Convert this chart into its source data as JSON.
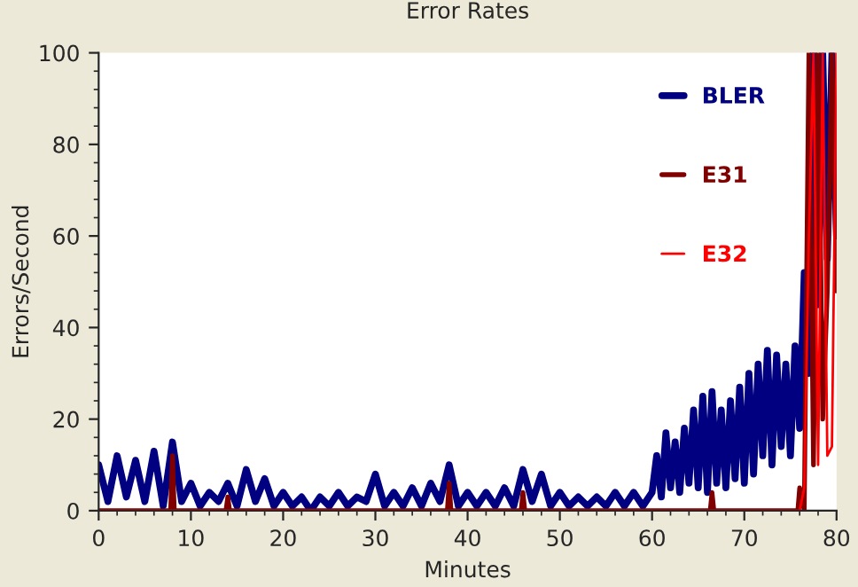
{
  "chart_data": {
    "type": "line",
    "title": "Error Rates",
    "xlabel": "Minutes",
    "ylabel": "Errors/Second",
    "xlim": [
      0,
      80
    ],
    "xticks": [
      0,
      10,
      20,
      30,
      40,
      50,
      60,
      70,
      80
    ],
    "ylim": [
      0,
      100
    ],
    "yticks": [
      0,
      20,
      40,
      60,
      80,
      100
    ],
    "grid": false,
    "legend": "top right",
    "series": [
      {
        "name": "BLER",
        "color": "#000080",
        "x": [
          0,
          1,
          2,
          3,
          4,
          5,
          6,
          7,
          8,
          9,
          10,
          11,
          12,
          13,
          14,
          15,
          16,
          17,
          18,
          19,
          20,
          21,
          22,
          23,
          24,
          25,
          26,
          27,
          28,
          29,
          30,
          31,
          32,
          33,
          34,
          35,
          36,
          37,
          38,
          39,
          40,
          41,
          42,
          43,
          44,
          45,
          46,
          47,
          48,
          49,
          50,
          51,
          52,
          53,
          54,
          55,
          56,
          57,
          58,
          59,
          60,
          60.5,
          61,
          61.5,
          62,
          62.5,
          63,
          63.5,
          64,
          64.5,
          65,
          65.5,
          66,
          66.5,
          67,
          67.5,
          68,
          68.5,
          69,
          69.5,
          70,
          70.5,
          71,
          71.5,
          72,
          72.5,
          73,
          73.5,
          74,
          74.5,
          75,
          75.5,
          76,
          76.5,
          77,
          77.5,
          78,
          78.5,
          79,
          79.5,
          80
        ],
        "values": [
          10,
          2,
          12,
          3,
          11,
          2,
          13,
          1,
          15,
          2,
          6,
          1,
          4,
          2,
          6,
          1,
          9,
          2,
          7,
          1,
          4,
          1,
          3,
          0,
          3,
          1,
          4,
          1,
          3,
          2,
          8,
          1,
          4,
          1,
          5,
          1,
          6,
          2,
          10,
          1,
          4,
          1,
          4,
          1,
          5,
          1,
          9,
          2,
          8,
          1,
          4,
          1,
          3,
          1,
          3,
          1,
          4,
          1,
          4,
          1,
          4,
          12,
          3,
          17,
          5,
          15,
          4,
          18,
          6,
          22,
          5,
          25,
          4,
          26,
          6,
          22,
          5,
          24,
          7,
          27,
          6,
          30,
          8,
          32,
          12,
          35,
          10,
          34,
          14,
          32,
          12,
          36,
          18,
          52,
          30,
          100,
          45,
          100,
          55,
          100,
          60
        ]
      },
      {
        "name": "E31",
        "color": "#800000",
        "x": [
          0,
          7.8,
          8,
          8.2,
          13.8,
          14,
          14.2,
          37.8,
          38,
          38.2,
          45.8,
          46,
          46.2,
          66.3,
          66.5,
          66.7,
          75.8,
          76,
          76.5,
          77,
          77.5,
          78,
          78.5,
          79,
          79.5,
          80
        ],
        "values": [
          0,
          0,
          12,
          0,
          0,
          3,
          0,
          0,
          6,
          0,
          0,
          4,
          0,
          0,
          4,
          0,
          0,
          5,
          0,
          100,
          10,
          100,
          20,
          48,
          100,
          48
        ]
      },
      {
        "name": "E32",
        "color": "#ff0000",
        "x": [
          0,
          76,
          76.5,
          77,
          77.5,
          78,
          78.5,
          79,
          79.5,
          80
        ],
        "values": [
          0,
          0,
          5,
          60,
          100,
          10,
          100,
          12,
          14,
          100
        ]
      }
    ]
  }
}
